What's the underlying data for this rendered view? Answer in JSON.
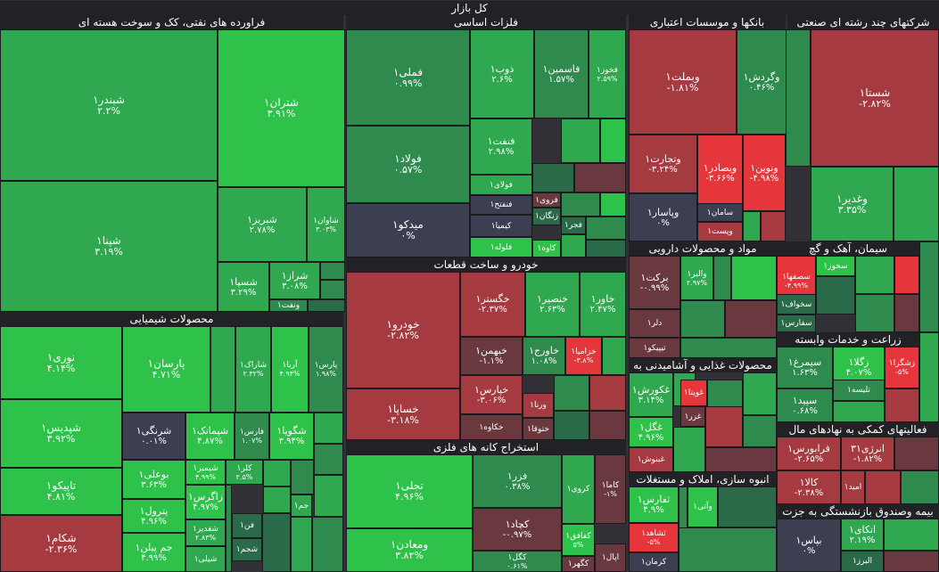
{
  "title": "کل بازار",
  "colors": {
    "g3": "#2ec24b",
    "g2": "#30a84f",
    "g1": "#2e8a4d",
    "g0": "#2a6a48",
    "nz": "#3c3f52",
    "r1": "#6a3940",
    "r2": "#a53a40",
    "r3": "#e5363b"
  },
  "chart_data": {
    "type": "treemap",
    "title": "کل بازار",
    "sectors": [
      {
        "name": "فراورده های نفتی، کک و سوخت هسته ای",
        "stocks": [
          {
            "name": "شبندر۱",
            "change": "۲.۲%",
            "value": 2.2
          },
          {
            "name": "شپنا۱",
            "change": "۳.۱۹%",
            "value": 3.19
          },
          {
            "name": "شتران۱",
            "change": "۳.۹۱%",
            "value": 3.91
          },
          {
            "name": "شبریز۱",
            "change": "۲.۷۸%",
            "value": 2.78
          },
          {
            "name": "شاوان۱",
            "change": "۳.۰۳%",
            "value": 3.03
          },
          {
            "name": "شسپا۱",
            "change": "۳.۲۹%",
            "value": 3.29
          },
          {
            "name": "شراز۱",
            "change": "۳.۰۸%",
            "value": 3.08
          },
          {
            "name": "ونفت۱",
            "change": "",
            "value": null
          }
        ]
      },
      {
        "name": "محصولات شیمیایی",
        "stocks": [
          {
            "name": "نوری۱",
            "change": "۴.۱۴%",
            "value": 4.14
          },
          {
            "name": "شپدیس۱",
            "change": "۳.۹۲%",
            "value": 3.92
          },
          {
            "name": "تاپیکو۱",
            "change": "۴.۸۱%",
            "value": 4.81
          },
          {
            "name": "شکام۱",
            "change": "-۲.۳۶%",
            "value": -2.36
          },
          {
            "name": "پارسان۱",
            "change": "۴.۷۱%",
            "value": 4.71
          },
          {
            "name": "شاراک۱",
            "change": "۲.۳۲%",
            "value": 2.32
          },
          {
            "name": "آریا۱",
            "change": "۴.۹۴%",
            "value": 4.94
          },
          {
            "name": "پارس۱",
            "change": "۱.۹۸%",
            "value": 1.98
          },
          {
            "name": "شرنگی۱",
            "change": "۰.۰۱%",
            "value": 0.01
          },
          {
            "name": "شپمانک۱",
            "change": "۴.۸۷%",
            "value": 4.87
          },
          {
            "name": "فارس۱",
            "change": "۱.۰۷%",
            "value": 1.07
          },
          {
            "name": "شگویا۱",
            "change": "۳.۹۴%",
            "value": 3.94
          },
          {
            "name": "بوعلی۱",
            "change": "۳.۶۳%",
            "value": 3.63
          },
          {
            "name": "شیمیر۱",
            "change": "۴.۹۹%",
            "value": 4.99
          },
          {
            "name": "کلر۱",
            "change": "۲.۵%",
            "value": 2.5
          },
          {
            "name": "پترول۱",
            "change": "۴.۹۶%",
            "value": 4.96
          },
          {
            "name": "زاگرس۱",
            "change": "۴.۹۷%",
            "value": 4.97
          },
          {
            "name": "جم پیلن۱",
            "change": "۴.۹۹%",
            "value": 4.99
          },
          {
            "name": "شغدیر۱",
            "change": "۲.۸۳%",
            "value": 2.83
          },
          {
            "name": "جم۱",
            "change": "",
            "value": null
          },
          {
            "name": "فن۱",
            "change": "",
            "value": null
          },
          {
            "name": "شجم۱",
            "change": "",
            "value": null
          },
          {
            "name": "شپلی۱",
            "change": "",
            "value": null
          }
        ]
      },
      {
        "name": "فلزات اساسی",
        "stocks": [
          {
            "name": "فملی۱",
            "change": "۰.۹۹%",
            "value": 0.99
          },
          {
            "name": "فولاد۱",
            "change": "۰.۵۷%",
            "value": 0.57
          },
          {
            "name": "میدکو۱",
            "change": "۰%",
            "value": 0
          },
          {
            "name": "ذوب۱",
            "change": "۲.۶%",
            "value": 2.6
          },
          {
            "name": "فاسمین۱",
            "change": "۱.۵۷%",
            "value": 1.57
          },
          {
            "name": "فخوز۱",
            "change": "۲.۵۹%",
            "value": 2.59
          },
          {
            "name": "فنفت۱",
            "change": "۲.۹۸%",
            "value": 2.98
          },
          {
            "name": "فولای۱",
            "change": "",
            "value": null
          },
          {
            "name": "فنفتح۱",
            "change": "",
            "value": null
          },
          {
            "name": "کیمیا۱",
            "change": "",
            "value": null
          },
          {
            "name": "فلوله۱",
            "change": "",
            "value": null
          },
          {
            "name": "فروی۱",
            "change": "",
            "value": null
          },
          {
            "name": "زنگان۱",
            "change": "",
            "value": null
          },
          {
            "name": "فجر۱",
            "change": "",
            "value": null
          },
          {
            "name": "کاوه۱",
            "change": "",
            "value": null
          }
        ]
      },
      {
        "name": "بانکها و موسسات اعتباری",
        "stocks": [
          {
            "name": "وبملت۱",
            "change": "-۱.۸۱%",
            "value": -1.81
          },
          {
            "name": "وگردش۱",
            "change": "۰.۴۶%",
            "value": 0.46
          },
          {
            "name": "وتجارت۱",
            "change": "-۳.۲۴%",
            "value": -3.24
          },
          {
            "name": "وبصادر۱",
            "change": "-۳.۶۶%",
            "value": -3.66
          },
          {
            "name": "ونوین۱",
            "change": "-۴.۹۸%",
            "value": -4.98
          },
          {
            "name": "وپاسار۱",
            "change": "۰%",
            "value": 0
          },
          {
            "name": "سامان۱",
            "change": "",
            "value": null
          },
          {
            "name": "وپست۱",
            "change": "",
            "value": null
          }
        ]
      },
      {
        "name": "شرکتهای چند رشته ای صنعتی",
        "stocks": [
          {
            "name": "شستا۱",
            "change": "-۲.۸۲%",
            "value": -2.82
          },
          {
            "name": "وغدیر۱",
            "change": "۳.۳۵%",
            "value": 3.35
          }
        ]
      },
      {
        "name": "خودرو و ساخت قطعات",
        "stocks": [
          {
            "name": "خودرو۱",
            "change": "-۲.۸۲%",
            "value": -2.82
          },
          {
            "name": "خساپا۱",
            "change": "-۳.۱۸%",
            "value": -3.18
          },
          {
            "name": "خگستر۱",
            "change": "-۲.۳۷%",
            "value": -2.37
          },
          {
            "name": "خنصیر۱",
            "change": "۲.۶۳%",
            "value": 2.63
          },
          {
            "name": "خاور۱",
            "change": "۲.۴۷%",
            "value": 2.47
          },
          {
            "name": "خبهمن۱",
            "change": "-۱.۱%",
            "value": -1.1
          },
          {
            "name": "خاورج۱",
            "change": "۱.۰۸%",
            "value": 1.08
          },
          {
            "name": "خزامیا۱",
            "change": "-۳.۸%",
            "value": -3.8
          },
          {
            "name": "خپارس۱",
            "change": "-۳.۰۶%",
            "value": -3.06
          },
          {
            "name": "خکاوه۱",
            "change": "",
            "value": null
          },
          {
            "name": "ورنا۱",
            "change": "",
            "value": null
          },
          {
            "name": "ختوقا۱",
            "change": "",
            "value": null
          }
        ]
      },
      {
        "name": "استخراج کانه های فلزی",
        "stocks": [
          {
            "name": "تجلی۱",
            "change": "۴.۹۶%",
            "value": 4.96
          },
          {
            "name": "ومعادن۱",
            "change": "۳.۸۲%",
            "value": 3.82
          },
          {
            "name": "فزر۱",
            "change": "۰.۳۸%",
            "value": 0.38
          },
          {
            "name": "کچاد۱",
            "change": "-۰.۹۷%",
            "value": -0.97
          },
          {
            "name": "کگل۱",
            "change": "۰.۶۱%",
            "value": 0.61
          },
          {
            "name": "کروی۱",
            "change": "",
            "value": null
          },
          {
            "name": "کاما۱",
            "change": "-۱%",
            "value": -1
          },
          {
            "name": "کفافق۱",
            "change": "۵%",
            "value": 5
          },
          {
            "name": "کگهر۱",
            "change": "",
            "value": null
          },
          {
            "name": "اپال۱",
            "change": "",
            "value": null
          }
        ]
      },
      {
        "name": "مواد و محصولات دارویی",
        "stocks": [
          {
            "name": "برکت۱",
            "change": "-۰.۹۹%",
            "value": -0.99
          },
          {
            "name": "والبر۱",
            "change": "۲.۹۷%",
            "value": 2.97
          },
          {
            "name": "دلر۱",
            "change": "",
            "value": null
          },
          {
            "name": "تیپیکو۱",
            "change": "",
            "value": null
          }
        ]
      },
      {
        "name": "سیمان، آهک و گچ",
        "stocks": [
          {
            "name": "سصفها۱",
            "change": "-۴.۹۹%",
            "value": -4.99
          },
          {
            "name": "سخوز۱",
            "change": "",
            "value": null
          },
          {
            "name": "سخواف۱",
            "change": "",
            "value": null
          },
          {
            "name": "سفارس۱",
            "change": "",
            "value": null
          }
        ]
      },
      {
        "name": "محصولات غذایی و آشامیدنی به",
        "stocks": [
          {
            "name": "غکورش۱",
            "change": "۳.۱۴%",
            "value": 3.14
          },
          {
            "name": "غگل۱",
            "change": "۴.۹۶%",
            "value": 4.96
          },
          {
            "name": "غبنوش۱",
            "change": "",
            "value": null
          },
          {
            "name": "غزر۱",
            "change": "",
            "value": null
          },
          {
            "name": "غویتا۱",
            "change": "",
            "value": null
          }
        ]
      },
      {
        "name": "زراعت و خدمات وابسته",
        "stocks": [
          {
            "name": "سیمرغ۱",
            "change": "۱.۶۳%",
            "value": 1.63
          },
          {
            "name": "زگلا۱",
            "change": "۴.۰۷%",
            "value": 4.07
          },
          {
            "name": "زشگزا۱",
            "change": "-۵%",
            "value": -5
          },
          {
            "name": "سپید۱",
            "change": "۰.۶۸%",
            "value": 0.68
          },
          {
            "name": "تلیسه۱",
            "change": "",
            "value": null
          }
        ]
      },
      {
        "name": "انبوه سازی، املاک و مستغلات",
        "stocks": [
          {
            "name": "ثفارس۱",
            "change": "۴.۹%",
            "value": 4.9
          },
          {
            "name": "ثشاهد۱",
            "change": "-۵%",
            "value": -5
          },
          {
            "name": "وآتی۱",
            "change": "",
            "value": null
          },
          {
            "name": "کرمان۱",
            "change": "",
            "value": null
          }
        ]
      },
      {
        "name": "فعالیتهای کمکی به نهادهای مال",
        "stocks": [
          {
            "name": "فرابورس۱",
            "change": "-۲.۶۵%",
            "value": -2.65
          },
          {
            "name": "انرژی۳۱",
            "change": "-۱.۸۲%",
            "value": -1.82
          },
          {
            "name": "کالا۱",
            "change": "-۲.۳۸%",
            "value": -2.38
          },
          {
            "name": "امید۱",
            "change": "",
            "value": null
          }
        ]
      },
      {
        "name": "بیمه وصندوق بازنشستگی به جزت",
        "stocks": [
          {
            "name": "بپاس۱",
            "change": "۰%",
            "value": 0
          },
          {
            "name": "اتکای۱",
            "change": "۲.۱۹%",
            "value": 2.19
          },
          {
            "name": "البرز۱",
            "change": "",
            "value": null
          }
        ]
      }
    ]
  }
}
